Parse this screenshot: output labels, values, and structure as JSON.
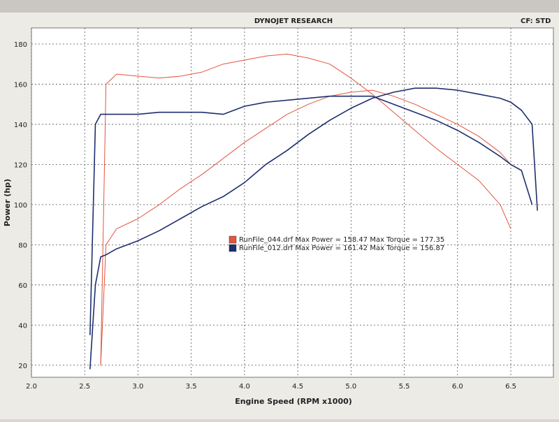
{
  "chart_data": {
    "type": "line",
    "title": "DYNOJET RESEARCH",
    "header_note": "CF: STD",
    "x_label": "Engine Speed (RPM x1000)",
    "y_label": "Power (hp)",
    "x": [
      2.55,
      2.6,
      2.65,
      2.7,
      2.8,
      3.0,
      3.2,
      3.4,
      3.6,
      3.8,
      4.0,
      4.2,
      4.4,
      4.6,
      4.8,
      5.0,
      5.2,
      5.4,
      5.6,
      5.8,
      6.0,
      6.2,
      6.4,
      6.5,
      6.6,
      6.7,
      6.75
    ],
    "series": [
      {
        "name": "RunFile_044.drf Max Power = 158.47 Max Torque = 177.35",
        "color": "#e2553f",
        "values": [
          null,
          null,
          20,
          80,
          88,
          93,
          100,
          108,
          115,
          123,
          131,
          138,
          145,
          150,
          154,
          156,
          157,
          154,
          150,
          145,
          140,
          134,
          126,
          120,
          null,
          null,
          null
        ],
        "torque": [
          null,
          null,
          20,
          160,
          165,
          164,
          163,
          164,
          166,
          170,
          172,
          174,
          175,
          173,
          170,
          163,
          155,
          146,
          137,
          128,
          120,
          112,
          100,
          88,
          null,
          null,
          null
        ]
      },
      {
        "name": "RunFile_012.drf Max Power = 161.42 Max Torque = 156.87",
        "color": "#1e2f6e",
        "values": [
          18,
          60,
          74,
          75,
          78,
          82,
          87,
          93,
          99,
          104,
          111,
          120,
          127,
          135,
          142,
          148,
          153,
          156,
          158,
          158,
          157,
          155,
          153,
          151,
          147,
          140,
          97
        ],
        "torque": [
          35,
          140,
          145,
          145,
          145,
          145,
          146,
          146,
          146,
          145,
          149,
          151,
          152,
          153,
          154,
          154,
          154,
          150,
          146,
          142,
          137,
          131,
          124,
          120,
          117,
          100,
          null
        ]
      }
    ],
    "xlim": [
      2.0,
      6.9
    ],
    "xticks": [
      {
        "value": 2,
        "label": "2.0"
      },
      2.5,
      {
        "value": 3,
        "label": "3.0"
      },
      3.5,
      {
        "value": 4,
        "label": "4.0"
      },
      4.5,
      {
        "value": 5,
        "label": "5.0"
      },
      5.5,
      {
        "value": 6,
        "label": "6.0"
      },
      6.5
    ],
    "ylim": [
      14,
      188
    ],
    "yticks": [
      20,
      40,
      60,
      80,
      100,
      120,
      140,
      160,
      180
    ],
    "grid": true
  }
}
